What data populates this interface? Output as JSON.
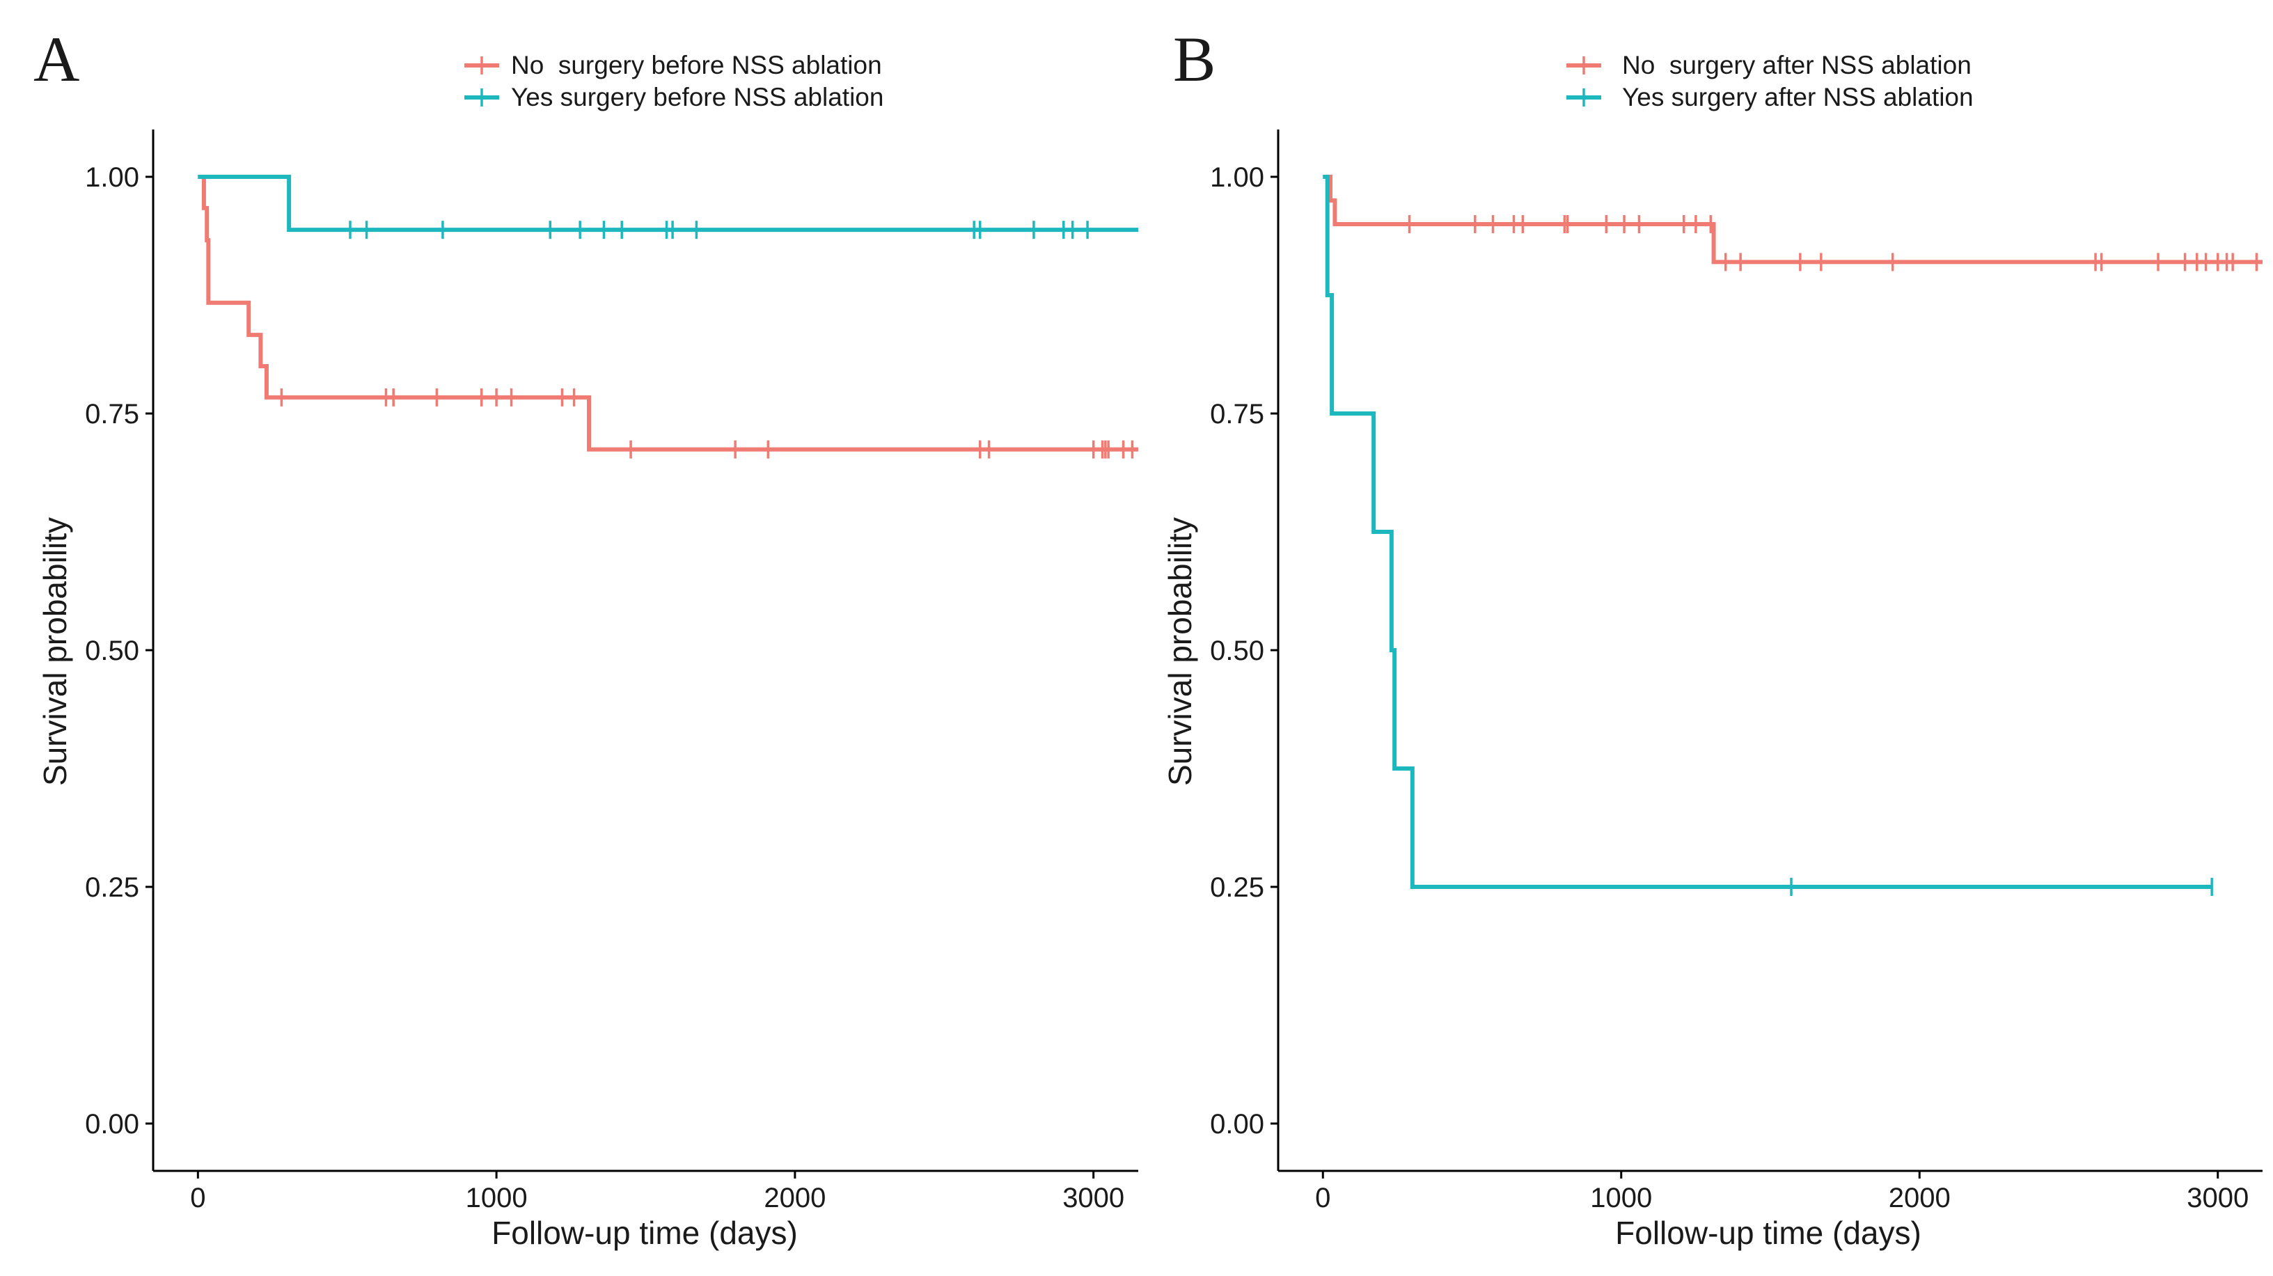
{
  "colors": {
    "series_no": "#F07B72",
    "series_yes": "#1DB8BE",
    "axis": "#000000"
  },
  "chart_data": [
    {
      "type": "line",
      "subtype": "kaplan-meier",
      "panel_label": "A",
      "xlabel": "Follow-up time (days)",
      "ylabel": "Survival probability",
      "xlim": [
        -150,
        3150
      ],
      "ylim": [
        -0.05,
        1.05
      ],
      "xticks": [
        0,
        1000,
        2000,
        3000
      ],
      "xtick_labels": [
        "0",
        "1000",
        "2000",
        "3000"
      ],
      "yticks": [
        0.0,
        0.25,
        0.5,
        0.75,
        1.0
      ],
      "ytick_labels": [
        "0.00",
        "0.25",
        "0.50",
        "0.75",
        "1.00"
      ],
      "legend_position": "top",
      "series": [
        {
          "name": "No  surgery before NSS ablation",
          "color": "#F07B72",
          "x": [
            0,
            20,
            30,
            35,
            170,
            210,
            230,
            1310,
            3150
          ],
          "y": [
            1.0,
            0.967,
            0.933,
            0.867,
            0.833,
            0.8,
            0.767,
            0.712,
            0.712
          ],
          "censor_x": [
            280,
            630,
            655,
            800,
            950,
            1000,
            1050,
            1220,
            1260,
            1450,
            1800,
            1910,
            2620,
            2650,
            3000,
            3030,
            3040,
            3050,
            3100,
            3130
          ],
          "censor_y": [
            0.767,
            0.767,
            0.767,
            0.767,
            0.767,
            0.767,
            0.767,
            0.767,
            0.767,
            0.712,
            0.712,
            0.712,
            0.712,
            0.712,
            0.712,
            0.712,
            0.712,
            0.712,
            0.712,
            0.712
          ]
        },
        {
          "name": "Yes surgery before NSS ablation",
          "color": "#1DB8BE",
          "x": [
            0,
            305,
            3150
          ],
          "y": [
            1.0,
            0.944,
            0.944
          ],
          "censor_x": [
            510,
            565,
            820,
            1180,
            1280,
            1360,
            1420,
            1570,
            1590,
            1670,
            2600,
            2620,
            2800,
            2900,
            2930,
            2980
          ],
          "censor_y": [
            0.944,
            0.944,
            0.944,
            0.944,
            0.944,
            0.944,
            0.944,
            0.944,
            0.944,
            0.944,
            0.944,
            0.944,
            0.944,
            0.944,
            0.944,
            0.944
          ]
        }
      ]
    },
    {
      "type": "line",
      "subtype": "kaplan-meier",
      "panel_label": "B",
      "xlabel": "Follow-up time (days)",
      "ylabel": "Survival probability",
      "xlim": [
        -150,
        3150
      ],
      "ylim": [
        -0.05,
        1.05
      ],
      "xticks": [
        0,
        1000,
        2000,
        3000
      ],
      "xtick_labels": [
        "0",
        "1000",
        "2000",
        "3000"
      ],
      "yticks": [
        0.0,
        0.25,
        0.5,
        0.75,
        1.0
      ],
      "ytick_labels": [
        "0.00",
        "0.25",
        "0.50",
        "0.75",
        "1.00"
      ],
      "legend_position": "top",
      "series": [
        {
          "name": "No  surgery after NSS ablation",
          "color": "#F07B72",
          "x": [
            0,
            25,
            40,
            1310,
            3150
          ],
          "y": [
            1.0,
            0.975,
            0.95,
            0.91,
            0.91
          ],
          "censor_x": [
            290,
            510,
            570,
            640,
            670,
            810,
            820,
            950,
            1010,
            1060,
            1210,
            1250,
            1300,
            1350,
            1400,
            1600,
            1670,
            1910,
            2590,
            2610,
            2800,
            2890,
            2930,
            2960,
            3000,
            3030,
            3050,
            3130
          ],
          "censor_y": [
            0.95,
            0.95,
            0.95,
            0.95,
            0.95,
            0.95,
            0.95,
            0.95,
            0.95,
            0.95,
            0.95,
            0.95,
            0.95,
            0.91,
            0.91,
            0.91,
            0.91,
            0.91,
            0.91,
            0.91,
            0.91,
            0.91,
            0.91,
            0.91,
            0.91,
            0.91,
            0.91,
            0.91
          ]
        },
        {
          "name": "Yes surgery after NSS ablation",
          "color": "#1DB8BE",
          "x": [
            0,
            15,
            30,
            170,
            230,
            240,
            300,
            2980
          ],
          "y": [
            1.0,
            0.875,
            0.75,
            0.625,
            0.5,
            0.375,
            0.25,
            0.25
          ],
          "censor_x": [
            1570,
            2980
          ],
          "censor_y": [
            0.25,
            0.25
          ]
        }
      ]
    }
  ]
}
